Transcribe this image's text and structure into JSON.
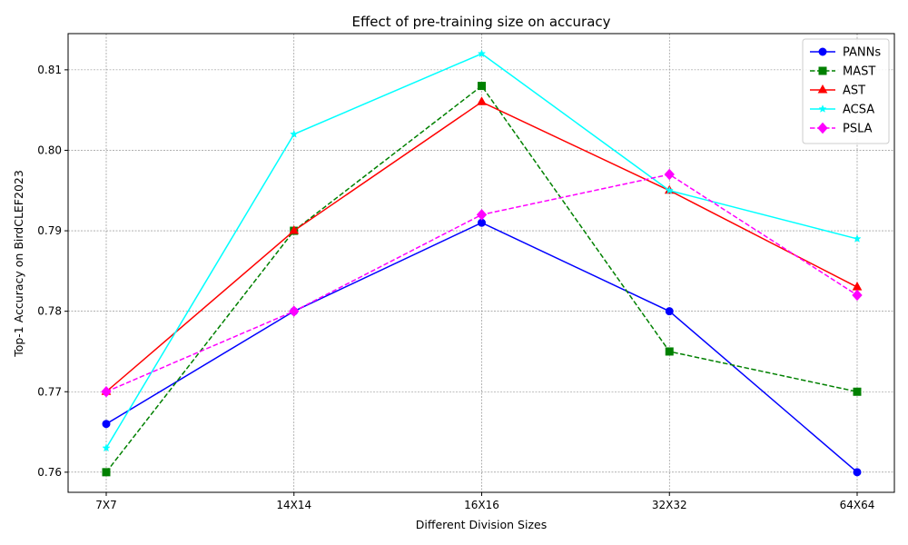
{
  "chart_data": {
    "type": "line",
    "title": "Effect of pre-training size on accuracy",
    "xlabel": "Different Division Sizes",
    "ylabel": "Top-1 Accuracy on BirdCLEF2023",
    "categories": [
      "7X7",
      "14X14",
      "16X16",
      "32X32",
      "64X64"
    ],
    "ylim": [
      0.7575,
      0.8145
    ],
    "yticks": [
      "0.76",
      "0.77",
      "0.78",
      "0.79",
      "0.80",
      "0.81"
    ],
    "grid": true,
    "legend_position": "top-right",
    "series": [
      {
        "name": "PANNs",
        "values": [
          0.766,
          0.78,
          0.791,
          0.78,
          0.76
        ],
        "color": "#0000ff",
        "dash": "solid",
        "marker": "circle"
      },
      {
        "name": "MAST",
        "values": [
          0.76,
          0.79,
          0.808,
          0.775,
          0.77
        ],
        "color": "#008000",
        "dash": "dashed",
        "marker": "square"
      },
      {
        "name": "AST",
        "values": [
          0.77,
          0.79,
          0.806,
          0.795,
          0.783
        ],
        "color": "#ff0000",
        "dash": "solid",
        "marker": "triangle"
      },
      {
        "name": "ACSA",
        "values": [
          0.763,
          0.802,
          0.812,
          0.795,
          0.789
        ],
        "color": "#00ffff",
        "dash": "solid",
        "marker": "star"
      },
      {
        "name": "PSLA",
        "values": [
          0.77,
          0.78,
          0.792,
          0.797,
          0.782
        ],
        "color": "#ff00ff",
        "dash": "dashed",
        "marker": "diamond"
      }
    ]
  }
}
